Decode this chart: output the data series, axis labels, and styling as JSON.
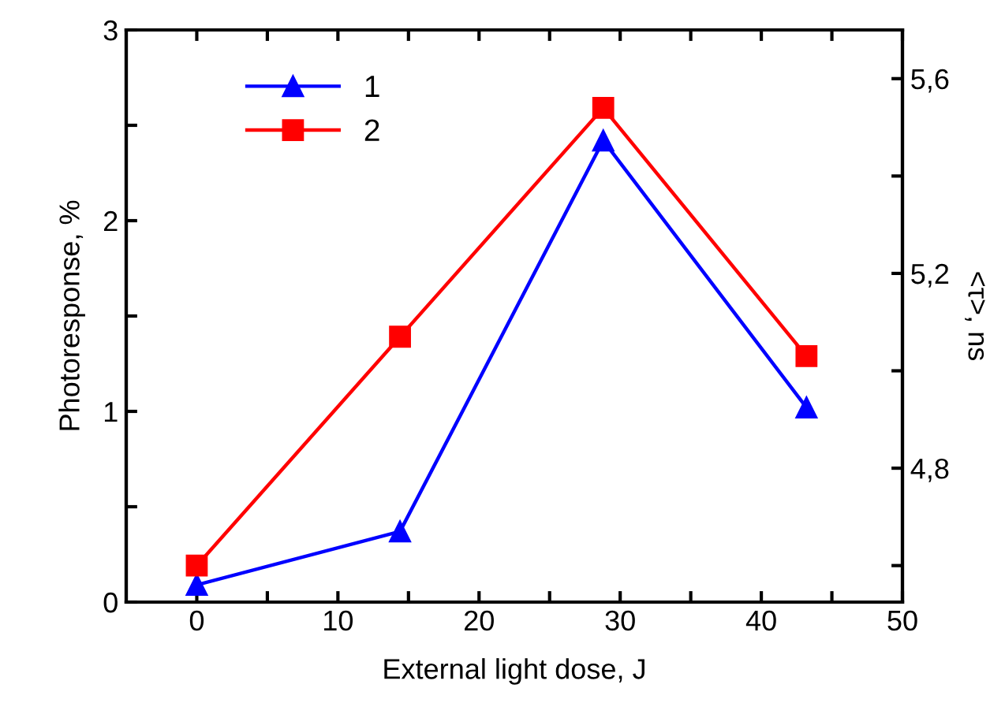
{
  "chart_data": {
    "type": "line",
    "xlabel": "External light dose, J",
    "ylabel": "Photoresponse, %",
    "y2label": "<τ>, ns",
    "x": [
      0,
      14.4,
      28.8,
      43.2
    ],
    "series": [
      {
        "name": "1",
        "color": "#0000ff",
        "values": [
          0.09,
          0.37,
          2.42,
          1.02
        ],
        "marker": "triangle"
      },
      {
        "name": "2",
        "color": "#ff0000",
        "values": [
          4.6,
          5.07,
          5.54,
          5.03
        ],
        "marker": "square",
        "axis": "y2"
      }
    ],
    "xlim": [
      -5,
      50
    ],
    "ylim": [
      0,
      3
    ],
    "y2lim": [
      4.525,
      5.7
    ],
    "xticks": [
      0,
      {
        "value": 5,
        "label": null
      },
      10,
      {
        "value": 15,
        "label": null
      },
      20,
      {
        "value": 25,
        "label": null
      },
      30,
      {
        "value": 35,
        "label": null
      },
      40,
      {
        "value": 45,
        "label": null
      },
      50
    ],
    "yticks": [
      0,
      {
        "value": 0.5,
        "label": null
      },
      1,
      {
        "value": 1.5,
        "label": null
      },
      2,
      {
        "value": 2.5,
        "label": null
      },
      3
    ],
    "y2ticks": [
      {
        "value": 4.6,
        "label": null
      },
      {
        "value": 4.8,
        "label": "4,8"
      },
      {
        "value": 5.0,
        "label": null
      },
      {
        "value": 5.2,
        "label": "5,2"
      },
      {
        "value": 5.4,
        "label": null
      },
      {
        "value": 5.6,
        "label": "5,6"
      }
    ],
    "legend": "top left",
    "grid": false,
    "line_style": "solid"
  }
}
